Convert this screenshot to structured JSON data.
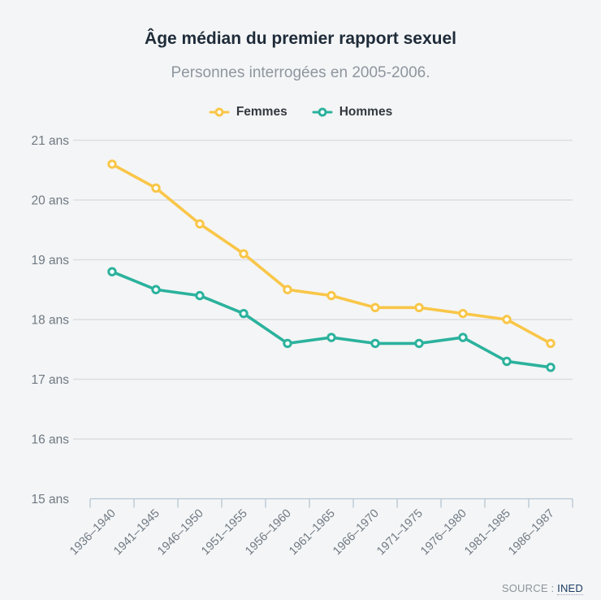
{
  "page": {
    "background_color": "#f4f5f6"
  },
  "header": {
    "title": "Âge médian du premier rapport sexuel",
    "subtitle": "Personnes interrogées en 2005-2006."
  },
  "legend": {
    "items": [
      {
        "label": "Femmes",
        "color": "#f9c648"
      },
      {
        "label": "Hommes",
        "color": "#2bb29d"
      }
    ]
  },
  "chart_data": {
    "type": "line",
    "title": "Âge médian du premier rapport sexuel",
    "subtitle": "Personnes interrogées en 2005-2006.",
    "categories": [
      "1936–1940",
      "1941–1945",
      "1946–1950",
      "1951–1955",
      "1956–1960",
      "1961–1965",
      "1966–1970",
      "1971–1975",
      "1976–1980",
      "1981–1985",
      "1986–1987"
    ],
    "series": [
      {
        "name": "Femmes",
        "color": "#f9c648",
        "values": [
          20.6,
          20.2,
          19.6,
          19.1,
          18.5,
          18.4,
          18.2,
          18.2,
          18.1,
          18.0,
          17.6
        ]
      },
      {
        "name": "Hommes",
        "color": "#2bb29d",
        "values": [
          18.8,
          18.5,
          18.4,
          18.1,
          17.6,
          17.7,
          17.6,
          17.6,
          17.7,
          17.3,
          17.2
        ]
      }
    ],
    "xlabel": "",
    "ylabel": "",
    "y_ticks": [
      15,
      16,
      17,
      18,
      19,
      20,
      21
    ],
    "y_tick_suffix": " ans",
    "ylim": [
      15,
      21
    ],
    "grid": true,
    "legend_position": "top",
    "marker_style": "open-circle",
    "colors": {
      "grid": "#dcdde0",
      "axis": "#b7c6d2",
      "tick_label": "#6f7983"
    }
  },
  "footer": {
    "source_label": "SOURCE :",
    "source_link_text": "INED"
  }
}
